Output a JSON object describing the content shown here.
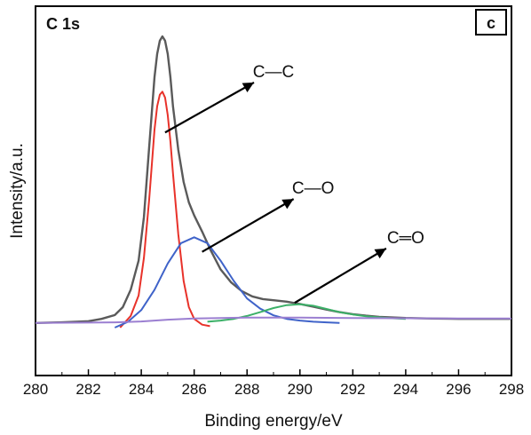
{
  "chart_data": {
    "type": "line",
    "title": "C 1s",
    "panel_label": "c",
    "xlabel": "Binding energy/eV",
    "ylabel": "Intensity/a.u.",
    "xlim": [
      280,
      298
    ],
    "ylim": [
      0,
      1
    ],
    "x_ticks": [
      280,
      282,
      284,
      286,
      288,
      290,
      292,
      294,
      296,
      298
    ],
    "y_ticks_shown": false,
    "grid": false,
    "series": [
      {
        "color": "#5a5a5a",
        "x": [
          280,
          281,
          282,
          282.5,
          283,
          283.3,
          283.6,
          283.9,
          284.1,
          284.3,
          284.5,
          284.6,
          284.7,
          284.8,
          284.9,
          285.0,
          285.1,
          285.2,
          285.4,
          285.6,
          285.8,
          286.0,
          286.3,
          286.6,
          287.0,
          287.4,
          287.8,
          288.2,
          288.6,
          289.0,
          289.5,
          290.0,
          290.5,
          291.0,
          291.5,
          292.0,
          292.5,
          293.0,
          294.0,
          295.0,
          296.0,
          297.0,
          298.0
        ],
        "y": [
          0.016,
          0.018,
          0.022,
          0.03,
          0.043,
          0.07,
          0.13,
          0.23,
          0.38,
          0.62,
          0.86,
          0.94,
          0.985,
          1.0,
          0.985,
          0.94,
          0.86,
          0.76,
          0.61,
          0.5,
          0.43,
          0.385,
          0.33,
          0.27,
          0.2,
          0.155,
          0.125,
          0.107,
          0.098,
          0.094,
          0.089,
          0.081,
          0.072,
          0.062,
          0.053,
          0.046,
          0.041,
          0.037,
          0.033,
          0.031,
          0.03,
          0.03,
          0.03
        ]
      },
      {
        "color": "#e8322a",
        "x": [
          283.2,
          283.6,
          283.9,
          284.1,
          284.3,
          284.5,
          284.6,
          284.7,
          284.8,
          284.9,
          285.0,
          285.1,
          285.2,
          285.4,
          285.6,
          285.8,
          286.0,
          286.3,
          286.6
        ],
        "y": [
          0.0,
          0.04,
          0.11,
          0.24,
          0.44,
          0.68,
          0.76,
          0.8,
          0.81,
          0.79,
          0.73,
          0.64,
          0.53,
          0.32,
          0.16,
          0.07,
          0.03,
          0.01,
          0.005
        ]
      },
      {
        "color": "#3f63c9",
        "x": [
          283.0,
          283.5,
          284.0,
          284.5,
          285.0,
          285.5,
          286.0,
          286.5,
          287.0,
          287.5,
          288.0,
          288.5,
          289.0,
          289.5,
          290.0,
          290.5,
          291.0,
          291.5
        ],
        "y": [
          0.0,
          0.02,
          0.06,
          0.13,
          0.22,
          0.29,
          0.31,
          0.29,
          0.23,
          0.16,
          0.1,
          0.065,
          0.042,
          0.03,
          0.024,
          0.02,
          0.018,
          0.016
        ]
      },
      {
        "color": "#3cb068",
        "x": [
          286.5,
          287.0,
          287.5,
          288.0,
          288.5,
          289.0,
          289.5,
          290.0,
          290.5,
          291.0,
          291.5,
          292.0,
          292.5,
          293.0,
          293.5,
          294.0
        ],
        "y": [
          0.02,
          0.024,
          0.03,
          0.04,
          0.053,
          0.067,
          0.077,
          0.08,
          0.075,
          0.064,
          0.053,
          0.045,
          0.039,
          0.035,
          0.032,
          0.03
        ]
      },
      {
        "color": "#9b7fd1",
        "x": [
          280,
          282,
          283,
          284,
          285,
          286,
          287,
          288,
          289,
          290,
          292,
          294,
          296,
          298
        ],
        "y": [
          0.016,
          0.017,
          0.018,
          0.021,
          0.027,
          0.031,
          0.033,
          0.034,
          0.034,
          0.034,
          0.033,
          0.032,
          0.031,
          0.031
        ]
      }
    ],
    "annotations": [
      {
        "text": "C—C",
        "arrow_tip": [
          284.9,
          0.67
        ],
        "label_x": 289.0,
        "label_y": 0.86
      },
      {
        "text": "C—O",
        "arrow_tip": [
          286.3,
          0.26
        ],
        "label_x": 290.5,
        "label_y": 0.46
      },
      {
        "text": "C═O",
        "arrow_tip": [
          289.8,
          0.085
        ],
        "label_x": 294.0,
        "label_y": 0.29
      }
    ]
  }
}
